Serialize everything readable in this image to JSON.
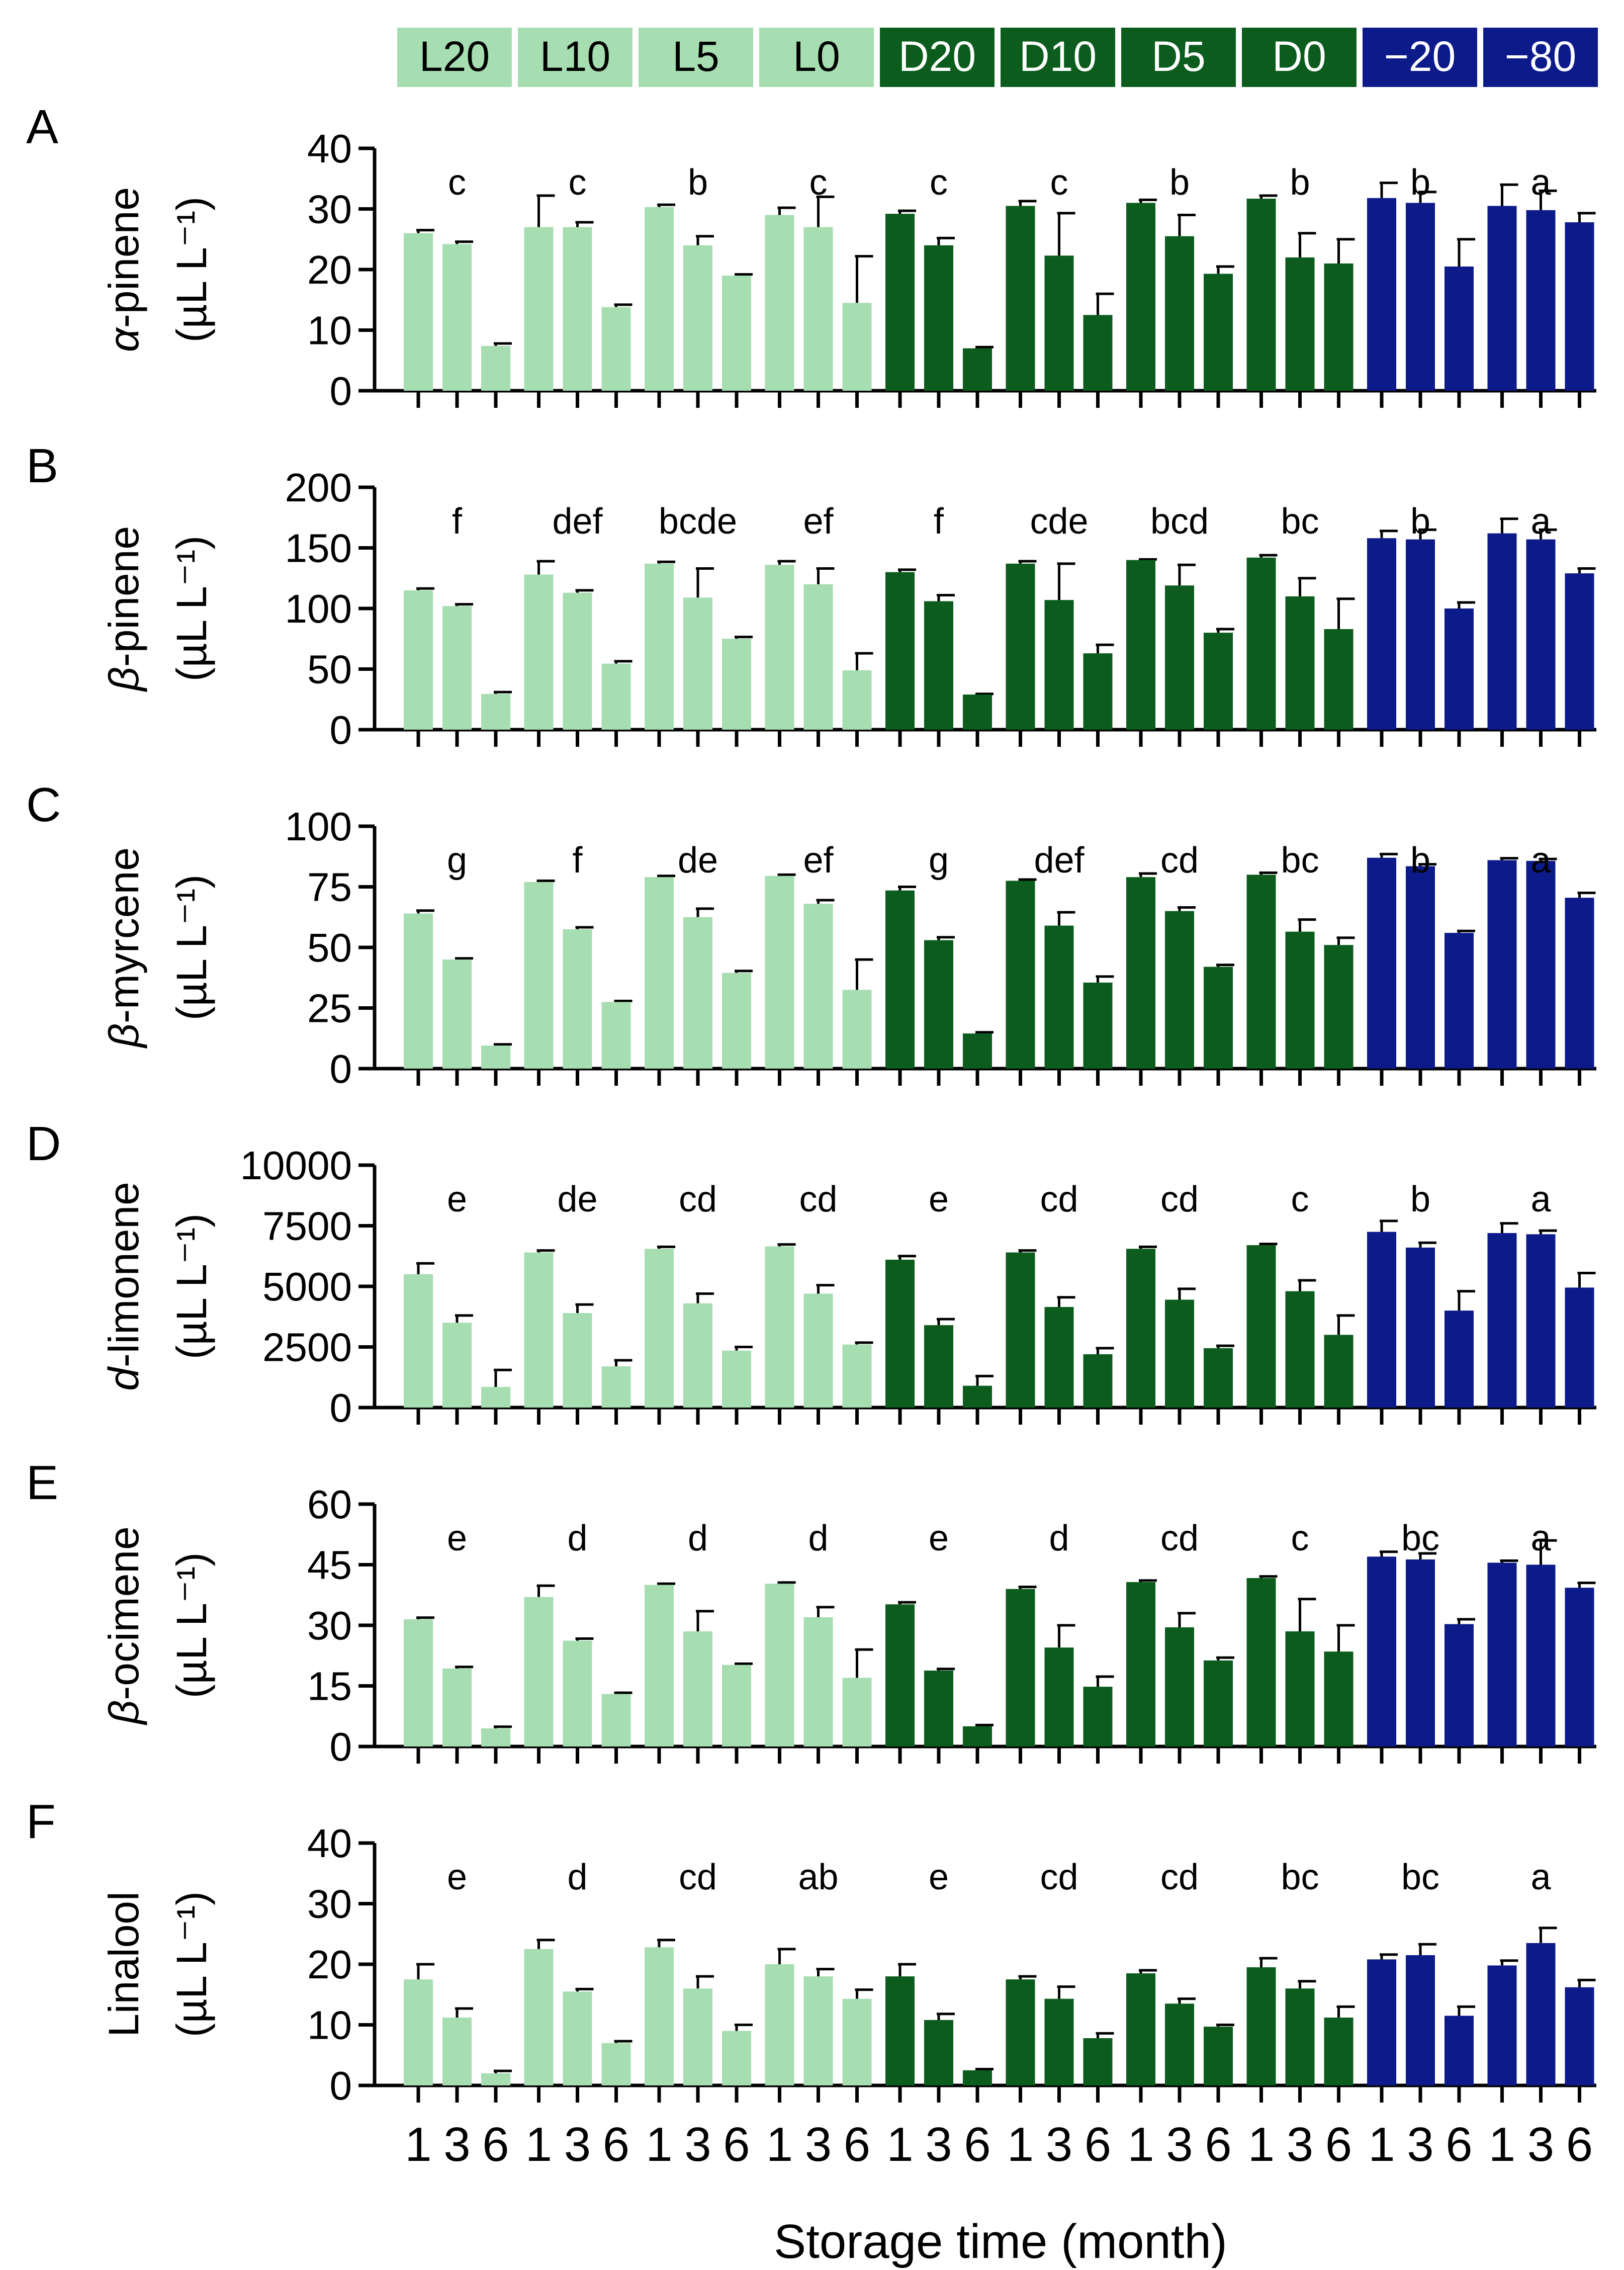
{
  "legend": {
    "items": [
      {
        "label": "L20",
        "color": "#a6ddb1"
      },
      {
        "label": "L10",
        "color": "#a6ddb1"
      },
      {
        "label": "L5",
        "color": "#a6ddb1"
      },
      {
        "label": "L0",
        "color": "#a6ddb1"
      },
      {
        "label": "D20",
        "color": "#0b5c1d",
        "text_color": "#ffffff"
      },
      {
        "label": "D10",
        "color": "#0b5c1d",
        "text_color": "#ffffff"
      },
      {
        "label": "D5",
        "color": "#0b5c1d",
        "text_color": "#ffffff"
      },
      {
        "label": "D0",
        "color": "#0b5c1d",
        "text_color": "#ffffff"
      },
      {
        "label": "−20",
        "color": "#0c1a8a",
        "text_color": "#ffffff"
      },
      {
        "label": "−80",
        "color": "#0c1a8a",
        "text_color": "#ffffff"
      }
    ]
  },
  "colors": {
    "light": "#a6ddb1",
    "dark": "#0b5c1d",
    "navy": "#0c1a8a",
    "axis": "#000000"
  },
  "xlabel": "Storage time (month)",
  "month_labels": [
    "1",
    "3",
    "6"
  ],
  "chart_data": [
    {
      "panel": "A",
      "type": "bar",
      "compound_prefix": "α",
      "compound_suffix": "-pinene",
      "unit": "(µL L⁻¹)",
      "yticks": [
        "0",
        "10",
        "20",
        "30",
        "40"
      ],
      "ylim": [
        0,
        40
      ],
      "categories": [
        "L20",
        "L10",
        "L5",
        "L0",
        "D20",
        "D10",
        "D5",
        "D0",
        "−20",
        "−80"
      ],
      "letters": [
        "c",
        "c",
        "b",
        "c",
        "c",
        "c",
        "b",
        "b",
        "b",
        "a"
      ],
      "values": [
        [
          26,
          24.2,
          7.4
        ],
        [
          27,
          27,
          13.8
        ],
        [
          30.3,
          24,
          19
        ],
        [
          29,
          27,
          14.5
        ],
        [
          29.2,
          24,
          7
        ],
        [
          30.5,
          22.3,
          12.5
        ],
        [
          31,
          25.5,
          19.3
        ],
        [
          31.7,
          22,
          21
        ],
        [
          31.8,
          31,
          20.5
        ],
        [
          30.5,
          29.8,
          27.8
        ]
      ],
      "errors": [
        [
          0.5,
          0.4,
          0.4
        ],
        [
          5.2,
          0.8,
          0.4
        ],
        [
          0.4,
          1.5,
          0.2
        ],
        [
          1.2,
          5,
          7.7
        ],
        [
          0.5,
          1.2,
          0.2
        ],
        [
          0.8,
          7,
          3.5
        ],
        [
          0.5,
          3.5,
          1.2
        ],
        [
          0.5,
          4,
          4
        ],
        [
          2.5,
          1.8,
          4.5
        ],
        [
          3.5,
          3.2,
          1.5
        ]
      ]
    },
    {
      "panel": "B",
      "type": "bar",
      "compound_prefix": "β",
      "compound_suffix": "-pinene",
      "unit": "(µL L⁻¹)",
      "yticks": [
        "0",
        "50",
        "100",
        "150",
        "200"
      ],
      "ylim": [
        0,
        200
      ],
      "categories": [
        "L20",
        "L10",
        "L5",
        "L0",
        "D20",
        "D10",
        "D5",
        "D0",
        "−20",
        "−80"
      ],
      "letters": [
        "f",
        "def",
        "bcde",
        "ef",
        "f",
        "cde",
        "bcd",
        "bc",
        "b",
        "a"
      ],
      "values": [
        [
          115,
          102,
          29.5
        ],
        [
          128,
          113,
          54.5
        ],
        [
          137,
          109,
          75
        ],
        [
          136,
          120,
          49
        ],
        [
          130,
          106,
          29
        ],
        [
          137,
          107,
          63
        ],
        [
          140,
          119,
          80
        ],
        [
          142,
          110,
          83
        ],
        [
          158,
          157,
          100
        ],
        [
          162,
          157,
          129
        ]
      ],
      "errors": [
        [
          1.5,
          1.5,
          1.5
        ],
        [
          11,
          2,
          2
        ],
        [
          1.5,
          24,
          1.5
        ],
        [
          3,
          13,
          14
        ],
        [
          2,
          5,
          0.5
        ],
        [
          2,
          30,
          7
        ],
        [
          0.5,
          17,
          3
        ],
        [
          2,
          15,
          25
        ],
        [
          6,
          8,
          5
        ],
        [
          12,
          8,
          4
        ]
      ]
    },
    {
      "panel": "C",
      "type": "bar",
      "compound_prefix": "β",
      "compound_suffix": "-myrcene",
      "unit": "(µL L⁻¹)",
      "yticks": [
        "0",
        "25",
        "50",
        "75",
        "100"
      ],
      "ylim": [
        0,
        100
      ],
      "categories": [
        "L20",
        "L10",
        "L5",
        "L0",
        "D20",
        "D10",
        "D5",
        "D0",
        "−20",
        "−80"
      ],
      "letters": [
        "g",
        "f",
        "de",
        "ef",
        "g",
        "def",
        "cd",
        "bc",
        "b",
        "a"
      ],
      "values": [
        [
          64,
          45,
          9.5
        ],
        [
          77,
          57.5,
          27.5
        ],
        [
          79,
          62.5,
          39.5
        ],
        [
          79.5,
          68,
          32.5
        ],
        [
          73.5,
          53,
          14.5
        ],
        [
          77.5,
          59,
          35.5
        ],
        [
          79,
          65,
          42
        ],
        [
          80,
          56.5,
          51
        ],
        [
          87,
          83.5,
          56
        ],
        [
          86,
          85.7,
          70.5
        ]
      ],
      "errors": [
        [
          1.2,
          0.5,
          0.5
        ],
        [
          0.5,
          0.8,
          0.4
        ],
        [
          0.5,
          3.5,
          0.8
        ],
        [
          0.5,
          1.5,
          12.5
        ],
        [
          1.5,
          1.2,
          0.5
        ],
        [
          0.5,
          5.5,
          2.5
        ],
        [
          1.5,
          1.5,
          0.8
        ],
        [
          0.8,
          5,
          3
        ],
        [
          1.5,
          0.8,
          0.8
        ],
        [
          0.8,
          0.8,
          2
        ]
      ]
    },
    {
      "panel": "D",
      "type": "bar",
      "compound_prefix": "d",
      "compound_suffix": "-limonene",
      "unit": "(µL L⁻¹)",
      "yticks": [
        "0",
        "2500",
        "5000",
        "7500",
        "10000"
      ],
      "ylim": [
        0,
        10000
      ],
      "categories": [
        "L20",
        "L10",
        "L5",
        "L0",
        "D20",
        "D10",
        "D5",
        "D0",
        "−20",
        "−80"
      ],
      "letters": [
        "e",
        "de",
        "cd",
        "cd",
        "e",
        "cd",
        "cd",
        "c",
        "b",
        "a"
      ],
      "values": [
        [
          5500,
          3500,
          850
        ],
        [
          6400,
          3900,
          1700
        ],
        [
          6550,
          4300,
          2350
        ],
        [
          6650,
          4700,
          2600
        ],
        [
          6100,
          3400,
          900
        ],
        [
          6400,
          4150,
          2200
        ],
        [
          6550,
          4450,
          2450
        ],
        [
          6700,
          4800,
          3000
        ],
        [
          7250,
          6600,
          4000
        ],
        [
          7200,
          7150,
          4950
        ]
      ],
      "errors": [
        [
          450,
          300,
          700
        ],
        [
          80,
          350,
          250
        ],
        [
          80,
          400,
          150
        ],
        [
          80,
          350,
          80
        ],
        [
          150,
          250,
          400
        ],
        [
          80,
          400,
          250
        ],
        [
          80,
          450,
          100
        ],
        [
          50,
          450,
          800
        ],
        [
          450,
          200,
          800
        ],
        [
          400,
          150,
          600
        ]
      ]
    },
    {
      "panel": "E",
      "type": "bar",
      "compound_prefix": "β",
      "compound_suffix": "-ocimene",
      "unit": "(µL L⁻¹)",
      "yticks": [
        "0",
        "15",
        "30",
        "45",
        "60"
      ],
      "ylim": [
        0,
        60
      ],
      "categories": [
        "L20",
        "L10",
        "L5",
        "L0",
        "D20",
        "D10",
        "D5",
        "D0",
        "−20",
        "−80"
      ],
      "letters": [
        "e",
        "d",
        "d",
        "d",
        "e",
        "d",
        "cd",
        "c",
        "bc",
        "a"
      ],
      "values": [
        [
          31.5,
          19.3,
          4.5
        ],
        [
          37,
          26.2,
          13
        ],
        [
          40,
          28.5,
          20.2
        ],
        [
          40.3,
          32,
          17
        ],
        [
          35.2,
          18.8,
          5
        ],
        [
          39,
          24.5,
          14.8
        ],
        [
          40.7,
          29.5,
          21.3
        ],
        [
          41.7,
          28.5,
          23.5
        ],
        [
          47,
          46.3,
          30.3
        ],
        [
          45.5,
          45,
          39.3
        ]
      ],
      "errors": [
        [
          0.4,
          0.4,
          0.4
        ],
        [
          2.8,
          0.5,
          0.3
        ],
        [
          0.3,
          5,
          0.3
        ],
        [
          0.3,
          2.5,
          7
        ],
        [
          0.5,
          0.4,
          0.3
        ],
        [
          0.5,
          5.5,
          2.5
        ],
        [
          0.4,
          3.5,
          0.7
        ],
        [
          0.4,
          8,
          6.5
        ],
        [
          1.2,
          1.5,
          1.2
        ],
        [
          0.5,
          6,
          1.2
        ]
      ]
    },
    {
      "panel": "F",
      "type": "bar",
      "compound_prefix": "",
      "compound_suffix": "Linalool",
      "unit": "(µL L⁻¹)",
      "yticks": [
        "0",
        "10",
        "20",
        "30",
        "40"
      ],
      "ylim": [
        0,
        40
      ],
      "categories": [
        "L20",
        "L10",
        "L5",
        "L0",
        "D20",
        "D10",
        "D5",
        "D0",
        "−20",
        "−80"
      ],
      "letters": [
        "e",
        "d",
        "cd",
        "ab",
        "e",
        "cd",
        "cd",
        "bc",
        "bc",
        "a"
      ],
      "values": [
        [
          17.5,
          11.2,
          2
        ],
        [
          22.5,
          15.5,
          7
        ],
        [
          22.8,
          16,
          9
        ],
        [
          20,
          18,
          14.3
        ],
        [
          18,
          10.8,
          2.5
        ],
        [
          17.5,
          14.3,
          7.8
        ],
        [
          18.5,
          13.5,
          9.7
        ],
        [
          19.5,
          16,
          11.2
        ],
        [
          20.8,
          21.5,
          11.5
        ],
        [
          19.8,
          23.5,
          16.2
        ]
      ],
      "errors": [
        [
          2.5,
          1.5,
          0.4
        ],
        [
          1.5,
          0.4,
          0.3
        ],
        [
          1.2,
          2,
          1
        ],
        [
          2.5,
          1.2,
          1.5
        ],
        [
          2,
          1,
          0.2
        ],
        [
          0.5,
          2,
          0.8
        ],
        [
          0.5,
          0.8,
          0.3
        ],
        [
          1.5,
          1.2,
          1.8
        ],
        [
          0.8,
          1.8,
          1.5
        ],
        [
          0.8,
          2.5,
          1.2
        ]
      ]
    }
  ]
}
